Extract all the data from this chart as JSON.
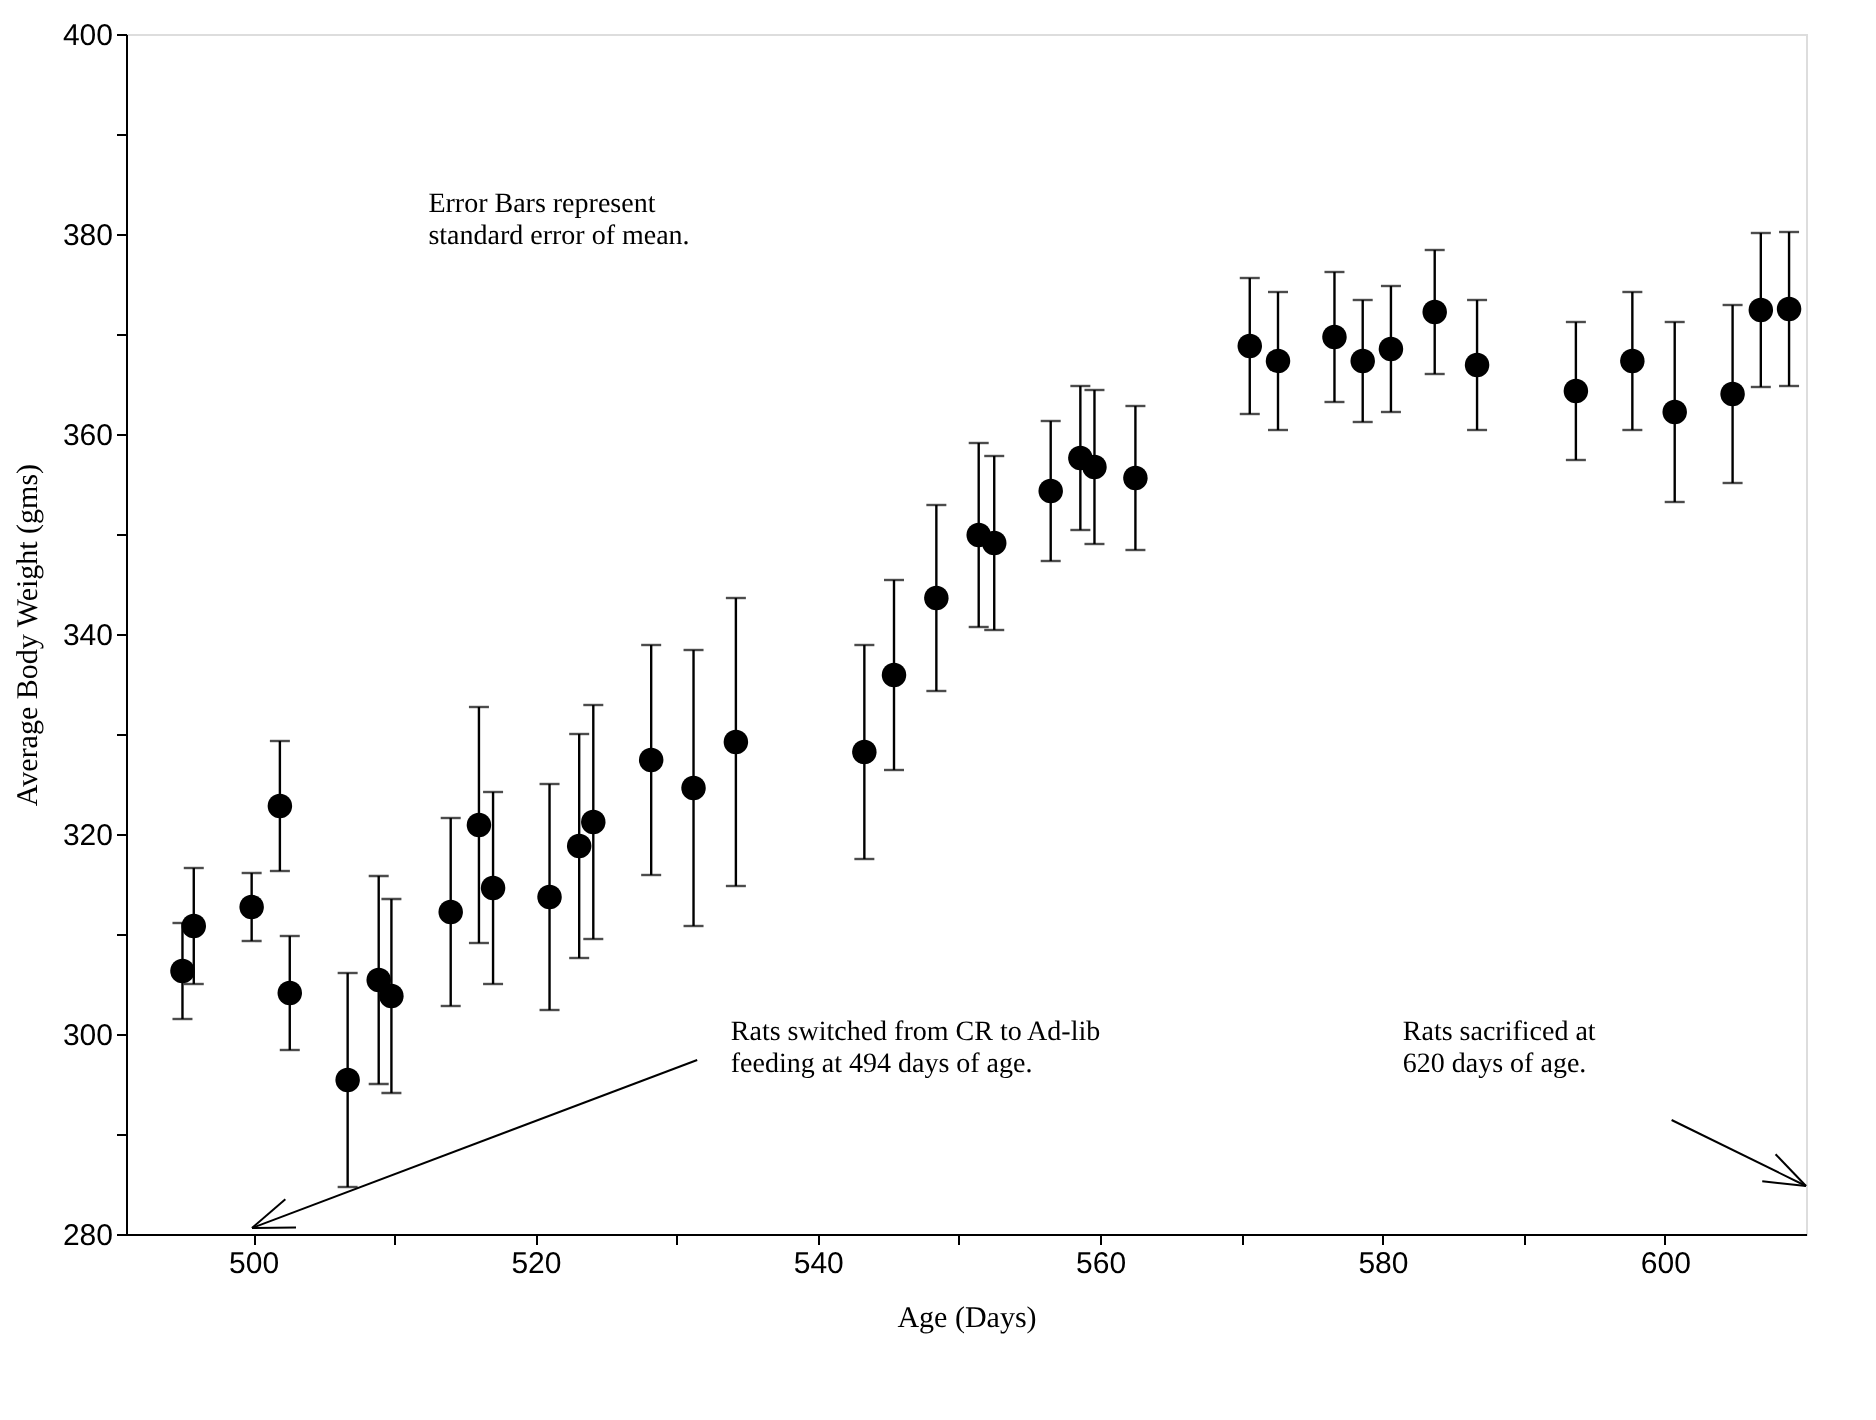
{
  "chart_data": {
    "type": "scatter",
    "xlabel": "Age (Days)",
    "ylabel": "Average Body Weight (gms)",
    "x": [
      495,
      495.8,
      499.9,
      501.9,
      502.6,
      506.7,
      508.9,
      509.8,
      514,
      516,
      517,
      521,
      523.1,
      524.1,
      528.2,
      531.2,
      534.2,
      543.3,
      545.4,
      548.4,
      551.4,
      552.5,
      556.5,
      558.6,
      559.6,
      562.5,
      570.6,
      572.6,
      576.6,
      578.6,
      580.6,
      583.7,
      586.7,
      593.7,
      597.7,
      600.7,
      604.8,
      606.8,
      608.8
    ],
    "series": [
      {
        "color": "#000000",
        "values": [
          306.3,
          310.8,
          312.7,
          322.8,
          304.1,
          295.4,
          305.4,
          303.8,
          312.2,
          320.9,
          314.6,
          313.7,
          318.8,
          321.2,
          327.4,
          324.6,
          329.2,
          328.2,
          335.9,
          343.6,
          349.9,
          349.1,
          354.3,
          357.6,
          356.7,
          355.6,
          368.8,
          367.3,
          369.7,
          367.3,
          368.5,
          372.2,
          366.9,
          364.3,
          367.3,
          362.2,
          364,
          372.4,
          372.5
        ],
        "errors": [
          4.8,
          5.8,
          3.4,
          6.5,
          5.7,
          10.7,
          10.4,
          9.7,
          9.4,
          11.8,
          9.6,
          11.3,
          11.2,
          11.7,
          11.5,
          13.8,
          14.4,
          10.7,
          9.5,
          9.3,
          9.2,
          8.7,
          7,
          7.2,
          7.7,
          7.2,
          6.8,
          6.9,
          6.5,
          6.1,
          6.3,
          6.2,
          6.5,
          6.9,
          6.9,
          9,
          8.9,
          7.7,
          7.7
        ]
      }
    ],
    "xlim": [
      491,
      610
    ],
    "xticks": [
      500,
      {
        "value": 510,
        "label": null
      },
      520,
      {
        "value": 530,
        "label": null
      },
      540,
      {
        "value": 550,
        "label": null
      },
      560,
      {
        "value": 570,
        "label": null
      },
      580,
      {
        "value": 590,
        "label": null
      },
      600
    ],
    "ylim": [
      280,
      400
    ],
    "yticks": [
      280,
      {
        "value": 290,
        "label": null
      },
      300,
      {
        "value": 310,
        "label": null
      },
      320,
      {
        "value": 330,
        "label": null
      },
      340,
      {
        "value": 350,
        "label": null
      },
      360,
      {
        "value": 370,
        "label": null
      },
      380,
      {
        "value": 390,
        "label": null
      },
      400
    ],
    "marker": "circle",
    "grid": false,
    "annotations": [
      "Error Bars represent\nstandard error of mean.",
      "Rats switched from CR to Ad-lib\nfeeding at 494 days of age.",
      "Rats sacrificed at\n620 days of age."
    ]
  }
}
